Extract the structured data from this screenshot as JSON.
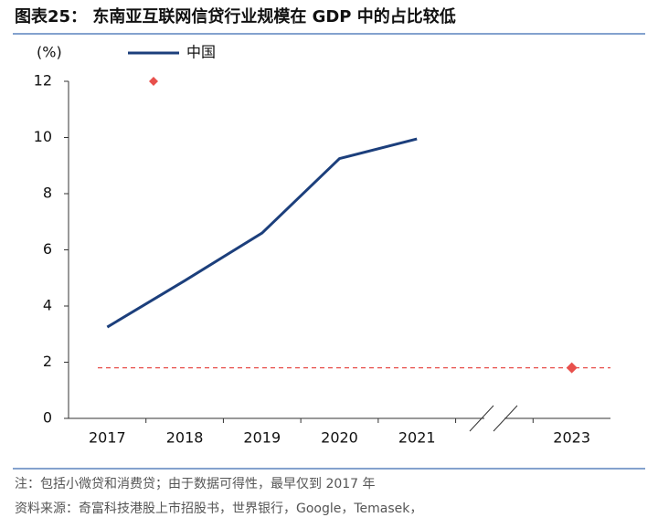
{
  "chart_data": {
    "type": "line",
    "title": "图表25：  东南亚互联网信贷行业规模在 GDP 中的占比较低",
    "y_label": "(%)",
    "categories": [
      "2017",
      "2018",
      "2019",
      "2020",
      "2021",
      null,
      "2023"
    ],
    "series": [
      {
        "name": "中国",
        "color": "#1c3f7c",
        "values": [
          3.25,
          4.9,
          6.6,
          9.25,
          9.95,
          null,
          null
        ]
      },
      {
        "color": "#e8504c",
        "marker": "diamond",
        "values": [
          null,
          null,
          null,
          null,
          null,
          null,
          1.8
        ]
      }
    ],
    "ylim": [
      0,
      12
    ],
    "yticks": [
      0,
      2,
      4,
      6,
      8,
      10,
      12
    ],
    "note": "注：包括小微贷和消费贷；由于数据可得性，最早仅到 2017 年",
    "source": "资料来源：奇富科技港股上市招股书，世界银行，Google，Temasek，"
  }
}
